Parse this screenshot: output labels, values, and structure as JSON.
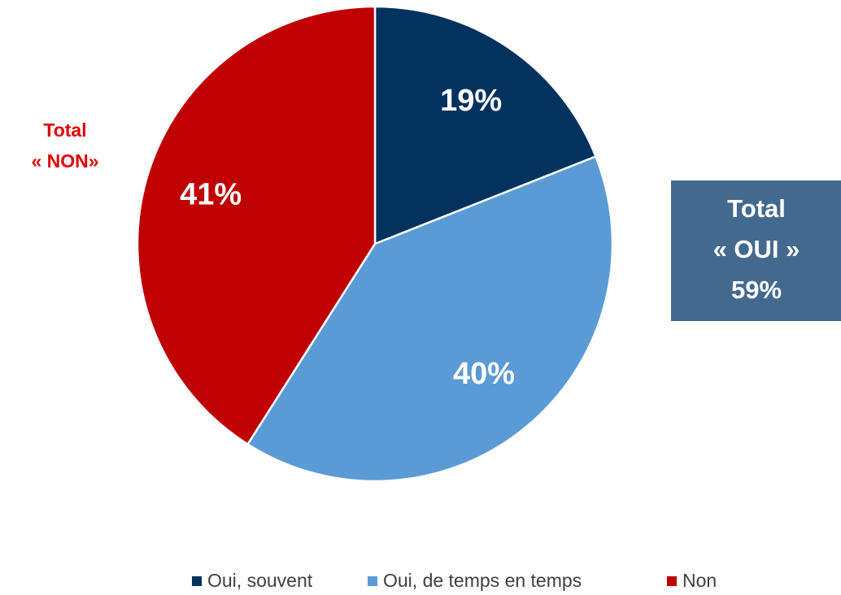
{
  "chart_data": {
    "type": "pie",
    "categories": [
      "Oui, souvent",
      "Oui, de temps en temps",
      "Non"
    ],
    "values": [
      19,
      40,
      41
    ],
    "value_labels": [
      "19%",
      "40%",
      "41%"
    ],
    "colors": [
      "#04325f",
      "#5b9bd5",
      "#c00000"
    ],
    "annotations": [
      {
        "lines": [
          "Total",
          "« NON»"
        ],
        "color": "#e00000"
      },
      {
        "lines": [
          "Total",
          "« OUI »",
          "59%"
        ],
        "color": "#ffffff",
        "background": "#44698f"
      }
    ]
  }
}
